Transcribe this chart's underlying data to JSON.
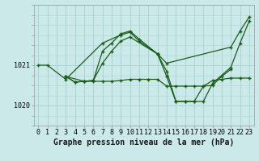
{
  "bg_color": "#cce9e9",
  "grid_color": "#aad4d4",
  "line_color": "#1a5c1a",
  "marker_color": "#1a5c1a",
  "xlabel": "Graphe pression niveau de la mer (hPa)",
  "xlabel_fontsize": 7,
  "tick_fontsize": 6,
  "ylim": [
    1019.5,
    1022.5
  ],
  "xlim": [
    -0.5,
    23.5
  ],
  "xticks": [
    0,
    1,
    2,
    3,
    4,
    5,
    6,
    7,
    8,
    9,
    10,
    11,
    12,
    13,
    14,
    15,
    16,
    17,
    18,
    19,
    20,
    21,
    22,
    23
  ],
  "yticks": [
    1020,
    1021
  ],
  "series": [
    {
      "x": [
        0,
        1,
        3,
        7,
        9,
        10,
        11,
        13,
        14,
        21,
        22,
        23
      ],
      "y": [
        1021.0,
        1021.0,
        1020.65,
        1021.55,
        1021.75,
        1021.82,
        1021.6,
        1021.28,
        1021.05,
        1021.45,
        1021.85,
        1022.2
      ]
    },
    {
      "x": [
        3,
        4,
        5,
        6,
        7,
        8,
        9,
        10,
        11,
        12,
        13,
        14,
        15,
        16,
        17,
        18,
        19,
        20,
        21,
        22,
        23
      ],
      "y": [
        1020.72,
        1020.58,
        1020.6,
        1020.6,
        1020.6,
        1020.6,
        1020.62,
        1020.65,
        1020.65,
        1020.65,
        1020.65,
        1020.48,
        1020.48,
        1020.48,
        1020.48,
        1020.48,
        1020.62,
        1020.65,
        1020.68,
        1020.68,
        1020.68
      ]
    },
    {
      "x": [
        3,
        4,
        5,
        6,
        7,
        8,
        9,
        10,
        11,
        13,
        14,
        15,
        16,
        17,
        18,
        19,
        21,
        22,
        23
      ],
      "y": [
        1020.72,
        1020.58,
        1020.6,
        1020.62,
        1021.35,
        1021.55,
        1021.78,
        1021.85,
        1021.65,
        1021.28,
        1020.85,
        1020.1,
        1020.1,
        1020.1,
        1020.1,
        1020.55,
        1020.95,
        1021.55,
        1022.1
      ]
    },
    {
      "x": [
        3,
        5,
        6,
        7,
        8,
        9,
        10,
        13,
        14,
        15,
        16,
        17,
        18,
        19,
        20,
        21
      ],
      "y": [
        1020.72,
        1020.6,
        1020.62,
        1021.05,
        1021.35,
        1021.6,
        1021.7,
        1021.28,
        1020.72,
        1020.1,
        1020.1,
        1020.1,
        1020.48,
        1020.5,
        1020.72,
        1020.9
      ]
    }
  ]
}
